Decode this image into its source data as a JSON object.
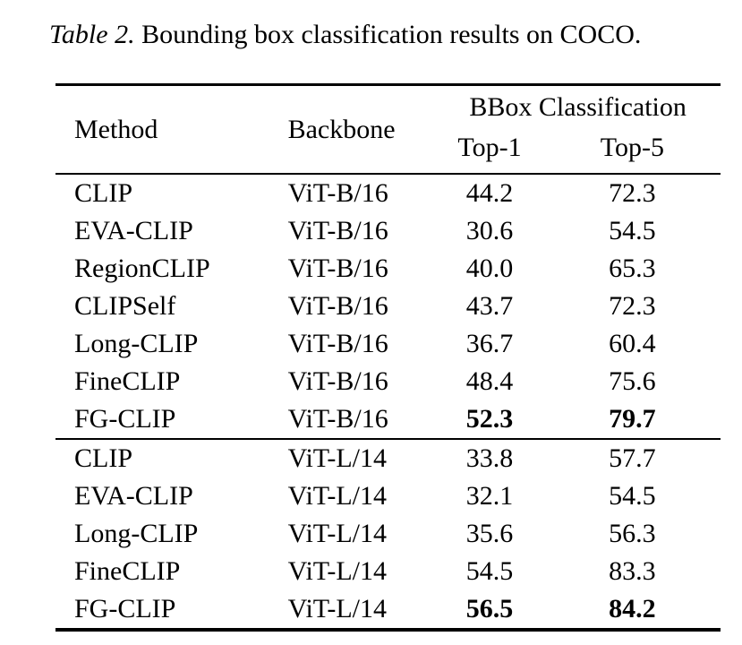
{
  "caption": {
    "label": "Table 2.",
    "text": "Bounding box classification results on COCO."
  },
  "table": {
    "col_headers": {
      "method": "Method",
      "backbone": "Backbone",
      "group_header": "BBox Classification",
      "sub_headers": [
        "Top-1",
        "Top-5"
      ]
    },
    "groups": [
      {
        "rows": [
          {
            "method": "CLIP",
            "backbone": "ViT-B/16",
            "top1": "44.2",
            "top5": "72.3"
          },
          {
            "method": "EVA-CLIP",
            "backbone": "ViT-B/16",
            "top1": "30.6",
            "top5": "54.5"
          },
          {
            "method": "RegionCLIP",
            "backbone": "ViT-B/16",
            "top1": "40.0",
            "top5": "65.3"
          },
          {
            "method": "CLIPSelf",
            "backbone": "ViT-B/16",
            "top1": "43.7",
            "top5": "72.3"
          },
          {
            "method": "Long-CLIP",
            "backbone": "ViT-B/16",
            "top1": "36.7",
            "top5": "60.4"
          },
          {
            "method": "FineCLIP",
            "backbone": "ViT-B/16",
            "top1": "48.4",
            "top5": "75.6"
          },
          {
            "method": "FG-CLIP",
            "backbone": "ViT-B/16",
            "top1": "52.3",
            "top5": "79.7"
          }
        ]
      },
      {
        "rows": [
          {
            "method": "CLIP",
            "backbone": "ViT-L/14",
            "top1": "33.8",
            "top5": "57.7"
          },
          {
            "method": "EVA-CLIP",
            "backbone": "ViT-L/14",
            "top1": "32.1",
            "top5": "54.5"
          },
          {
            "method": "Long-CLIP",
            "backbone": "ViT-L/14",
            "top1": "35.6",
            "top5": "56.3"
          },
          {
            "method": "FineCLIP",
            "backbone": "ViT-L/14",
            "top1": "54.5",
            "top5": "83.3"
          },
          {
            "method": "FG-CLIP",
            "backbone": "ViT-L/14",
            "top1": "56.5",
            "top5": "84.2"
          }
        ]
      }
    ]
  }
}
